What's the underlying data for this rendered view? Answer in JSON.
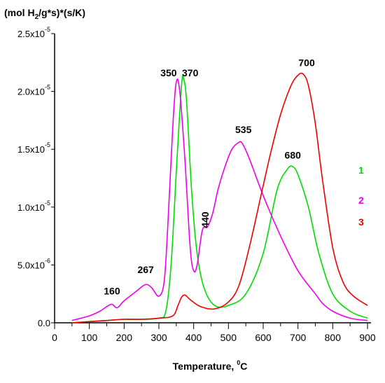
{
  "chart_data": {
    "type": "line",
    "title": "",
    "ylabel_parts": {
      "open": "(mol H",
      "sub": "2",
      "rest": "/g*s)*(s/K)"
    },
    "xlabel_parts": {
      "main": "Temperature, ",
      "sup": "0",
      "unit": "C"
    },
    "xlim": [
      0,
      900
    ],
    "ylim": [
      0,
      2.5e-05
    ],
    "grid": false,
    "x_ticks": [
      {
        "value": 0,
        "label": "0"
      },
      {
        "value": 100,
        "label": "100"
      },
      {
        "value": 200,
        "label": "200"
      },
      {
        "value": 300,
        "label": "300"
      },
      {
        "value": 400,
        "label": "400"
      },
      {
        "value": 500,
        "label": "500"
      },
      {
        "value": 600,
        "label": "600"
      },
      {
        "value": 700,
        "label": "700"
      },
      {
        "value": 800,
        "label": "800"
      },
      {
        "value": 900,
        "label": "900"
      }
    ],
    "y_ticks": [
      {
        "value": 0,
        "mant": "0.0",
        "exp": ""
      },
      {
        "value": 5e-06,
        "mant": "5.0x10",
        "exp": "-6"
      },
      {
        "value": 1e-05,
        "mant": "1.0x10",
        "exp": "-5"
      },
      {
        "value": 1.5e-05,
        "mant": "1.5x10",
        "exp": "-5"
      },
      {
        "value": 2e-05,
        "mant": "2.0x10",
        "exp": "-5"
      },
      {
        "value": 2.5e-05,
        "mant": "2.5x10",
        "exp": "-5"
      }
    ],
    "legend_position": "right",
    "legend": [
      {
        "label": "1",
        "color": "#00dd00"
      },
      {
        "label": "2",
        "color": "#ee00ee"
      },
      {
        "label": "3",
        "color": "#ee0000"
      }
    ],
    "series": [
      {
        "color": "#00dd00",
        "x": [
          50,
          100,
          150,
          200,
          250,
          300,
          320,
          335,
          350,
          365,
          372,
          380,
          395,
          410,
          430,
          460,
          500,
          550,
          600,
          640,
          670,
          685,
          700,
          730,
          760,
          800,
          850,
          900
        ],
        "y": [
          0,
          1e-07,
          2e-07,
          3e-07,
          3e-07,
          4e-07,
          1e-06,
          5e-06,
          1.3e-05,
          2.05e-05,
          2.1e-05,
          1.9e-05,
          1.1e-05,
          6e-06,
          3e-06,
          1.5e-06,
          1.5e-06,
          2.5e-06,
          6e-06,
          1.15e-05,
          1.33e-05,
          1.35e-05,
          1.28e-05,
          1e-05,
          6e-06,
          2.5e-06,
          1e-06,
          4e-07
        ]
      },
      {
        "color": "#ee00ee",
        "x": [
          50,
          100,
          130,
          150,
          165,
          180,
          200,
          230,
          255,
          267,
          280,
          300,
          315,
          325,
          340,
          350,
          360,
          375,
          390,
          400,
          410,
          425,
          440,
          455,
          470,
          490,
          510,
          530,
          540,
          560,
          600,
          650,
          700,
          750,
          770,
          800,
          850,
          900
        ],
        "y": [
          2e-07,
          6e-07,
          1e-06,
          1.4e-06,
          1.6e-06,
          1.3e-06,
          1.9e-06,
          2.6e-06,
          3.2e-06,
          3.3e-06,
          3e-06,
          2.3e-06,
          3.5e-06,
          8e-06,
          1.7e-05,
          2.08e-05,
          2e-05,
          1.4e-05,
          6.5e-06,
          4.5e-06,
          5e-06,
          8e-06,
          8.3e-06,
          9.5e-06,
          1.15e-05,
          1.35e-05,
          1.5e-05,
          1.56e-05,
          1.55e-05,
          1.42e-05,
          1.1e-05,
          7.5e-06,
          4.5e-06,
          2.5e-06,
          1.7e-06,
          1e-06,
          4e-07,
          2e-07
        ]
      },
      {
        "color": "#ee0000",
        "x": [
          50,
          100,
          150,
          200,
          250,
          300,
          340,
          355,
          365,
          375,
          390,
          420,
          460,
          500,
          530,
          560,
          590,
          620,
          650,
          680,
          700,
          715,
          730,
          750,
          770,
          800,
          830,
          860,
          900
        ],
        "y": [
          0,
          1e-07,
          2e-07,
          3e-07,
          3e-07,
          4e-07,
          6e-07,
          1.5e-06,
          2.2e-06,
          2.4e-06,
          2e-06,
          1.4e-06,
          1.2e-06,
          1.8e-06,
          3.2e-06,
          6.5e-06,
          1.05e-05,
          1.45e-05,
          1.8e-05,
          2.05e-05,
          2.14e-05,
          2.15e-05,
          2.05e-05,
          1.72e-05,
          1.25e-05,
          6.5e-06,
          3.5e-06,
          2.3e-06,
          1.5e-06
        ]
      }
    ],
    "annotations": [
      {
        "text": "160",
        "x": 165,
        "y": 2.45e-06,
        "rotate": false
      },
      {
        "text": "267",
        "x": 262,
        "y": 4.3e-06,
        "rotate": false
      },
      {
        "text": "350",
        "x": 328,
        "y": 2.13e-05,
        "rotate": false
      },
      {
        "text": "370",
        "x": 390,
        "y": 2.13e-05,
        "rotate": false
      },
      {
        "text": "440",
        "x": 443,
        "y": 8.9e-06,
        "rotate": true
      },
      {
        "text": "535",
        "x": 543,
        "y": 1.64e-05,
        "rotate": false
      },
      {
        "text": "680",
        "x": 685,
        "y": 1.42e-05,
        "rotate": false
      },
      {
        "text": "700",
        "x": 725,
        "y": 2.22e-05,
        "rotate": false
      }
    ]
  }
}
